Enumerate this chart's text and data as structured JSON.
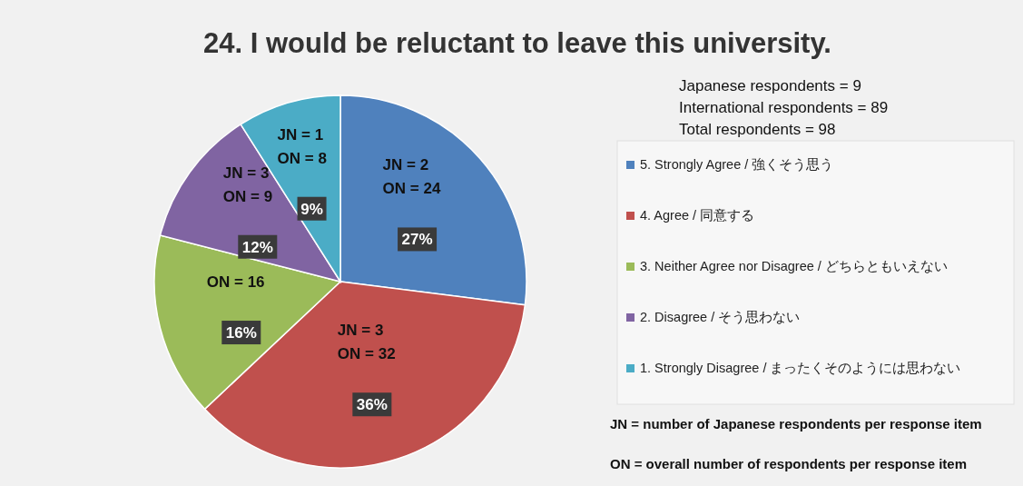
{
  "chart_data": {
    "type": "pie",
    "title": "24. I would be reluctant to leave this university.",
    "categories": [
      "5. Strongly Agree / 強くそう思う",
      "4. Agree / 同意する",
      "3. Neither Agree nor Disagree / どちらともいえない",
      "2. Disagree / そう思わない",
      "1. Strongly Disagree / まったくそのようには思わない"
    ],
    "values": [
      27,
      36,
      16,
      12,
      9
    ],
    "colors": [
      "#4f81bd",
      "#c0504d",
      "#9bbb59",
      "#8064a2",
      "#4bacc6"
    ],
    "value_labels": [
      "27%",
      "36%",
      "16%",
      "12%",
      "9%"
    ],
    "legend": "right",
    "annotations": [
      {
        "text": "JN = 2\nON = 24",
        "x": "5. Strongly Agree / 強くそう思う"
      },
      {
        "text": "JN = 3\nON = 32",
        "x": "4. Agree / 同意する"
      },
      {
        "text": "ON = 16",
        "x": "3. Neither Agree nor Disagree / どちらともいえない"
      },
      {
        "text": "JN = 3\nON = 9",
        "x": "2. Disagree / そう思わない"
      },
      {
        "text": "JN = 1\nON = 8",
        "x": "1. Strongly Disagree / まったくそのようには思わない"
      },
      "Japanese respondents = 9\nInternational respondents = 89\nTotal respondents = 98",
      "JN = number of Japanese respondents per response item",
      "ON = overall number of respondents per response item"
    ]
  }
}
